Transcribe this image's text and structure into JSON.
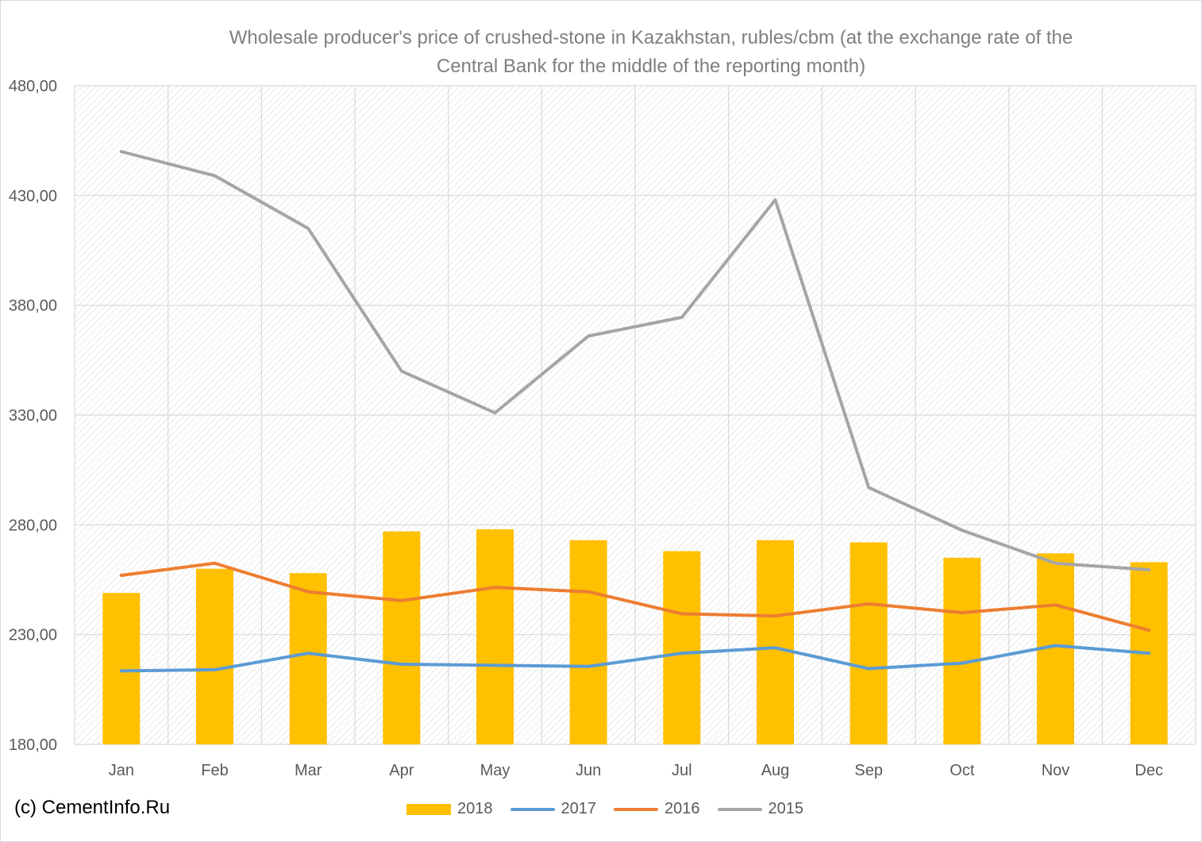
{
  "chart_data": {
    "type": "bar",
    "title": "Wholesale producer's price of crushed-stone in Kazakhstan, rubles/cbm (at the exchange rate of the Central Bank for the middle of the reporting month)",
    "title_lines": [
      "Wholesale producer's price of crushed-stone in Kazakhstan, rubles/cbm (at the exchange rate of the",
      "Central Bank for the middle of the reporting month)"
    ],
    "categories": [
      "Jan",
      "Feb",
      "Mar",
      "Apr",
      "May",
      "Jun",
      "Jul",
      "Aug",
      "Sep",
      "Oct",
      "Nov",
      "Dec"
    ],
    "ylim": [
      180,
      480
    ],
    "yticks": [
      180,
      230,
      280,
      330,
      380,
      430,
      480
    ],
    "ytick_labels": [
      "180,00",
      "230,00",
      "280,00",
      "330,00",
      "380,00",
      "430,00",
      "480,00"
    ],
    "grid": true,
    "legend_position": "bottom",
    "series": [
      {
        "name": "2018",
        "kind": "bar",
        "color": "#ffc000",
        "values": [
          249,
          260,
          258,
          277,
          278,
          273,
          268,
          273,
          272,
          265,
          267,
          263
        ]
      },
      {
        "name": "2017",
        "kind": "line",
        "color": "#5b9bd5",
        "values": [
          213.5,
          214,
          221.5,
          216.5,
          216,
          215.5,
          221.5,
          224,
          214.5,
          217,
          225,
          221.5
        ]
      },
      {
        "name": "2016",
        "kind": "line",
        "color": "#ed7d31",
        "values": [
          257,
          262.5,
          249.5,
          245.5,
          251.5,
          249.5,
          239.5,
          238.5,
          244,
          240,
          243.5,
          232
        ]
      },
      {
        "name": "2015",
        "kind": "line",
        "color": "#a5a5a5",
        "values": [
          450,
          439,
          415,
          350,
          331,
          366,
          374.5,
          428,
          297,
          277.5,
          262.5,
          259.5
        ]
      }
    ]
  },
  "footer": {
    "copyright": "(c) CementInfo.Ru"
  }
}
